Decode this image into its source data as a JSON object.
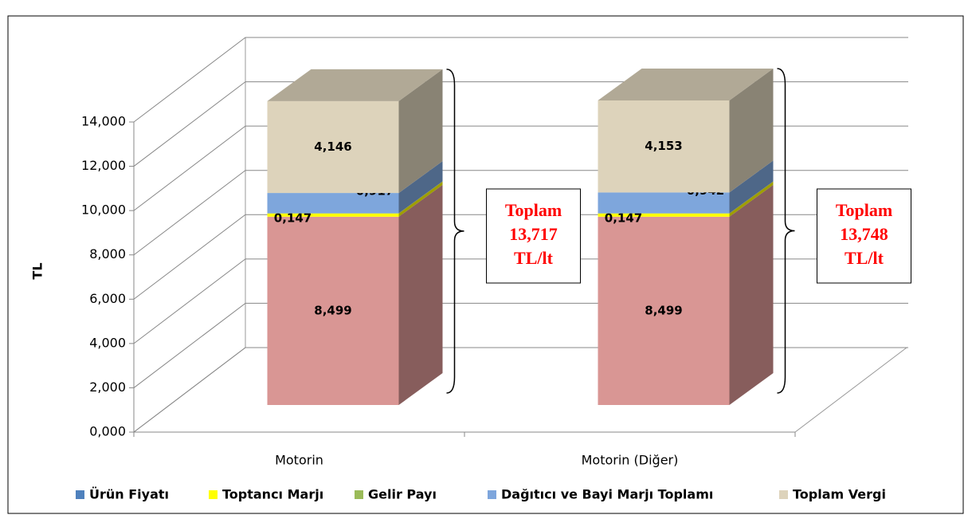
{
  "chart_data": {
    "type": "bar3d_stacked",
    "y_label": "TL",
    "categories": [
      "Motorin",
      "Motorin (Diğer)"
    ],
    "series": [
      {
        "name": "Ürün Fiyatı",
        "color": "#d99694",
        "legend_color": "#4f81bd",
        "values": [
          8.499,
          8.499
        ],
        "value_labels": [
          "8,499",
          "8,499"
        ]
      },
      {
        "name": "Toptancı Marjı",
        "color": "#ffff00",
        "legend_color": "#ffff00",
        "values": [
          0.147,
          0.147
        ],
        "value_labels": [
          "0,147",
          "0,147"
        ]
      },
      {
        "name": "Gelir Payı",
        "color": "#9bbb59",
        "legend_color": "#9bbb59",
        "values": [
          0.008,
          0.007
        ]
      },
      {
        "name": "Dağıtıcı ve Bayi Marjı Toplamı",
        "color": "#7ea6dc",
        "legend_color": "#7ea6dc",
        "values": [
          0.917,
          0.942
        ],
        "value_labels": [
          "0,917",
          "0,942"
        ]
      },
      {
        "name": "Toplam Vergi",
        "color": "#ddd3bb",
        "legend_color": "#ddd3bb",
        "values": [
          4.146,
          4.153
        ],
        "value_labels": [
          "4,146",
          "4,153"
        ]
      }
    ],
    "ylim": [
      0,
      14
    ],
    "yticks": [
      {
        "value": 0,
        "label": "0,000"
      },
      {
        "value": 2,
        "label": "2,000"
      },
      {
        "value": 4,
        "label": "4,000"
      },
      {
        "value": 6,
        "label": "6,000"
      },
      {
        "value": 8,
        "label": "8,000"
      },
      {
        "value": 10,
        "label": "10,000"
      },
      {
        "value": 12,
        "label": "12,000"
      },
      {
        "value": 14,
        "label": "14,000"
      }
    ],
    "grid": true,
    "legend": "bottom",
    "annotations": [
      {
        "lines": [
          "Toplam",
          "13,717",
          "TL/lt"
        ]
      },
      {
        "lines": [
          "Toplam",
          "13,748",
          "TL/lt"
        ]
      }
    ]
  }
}
